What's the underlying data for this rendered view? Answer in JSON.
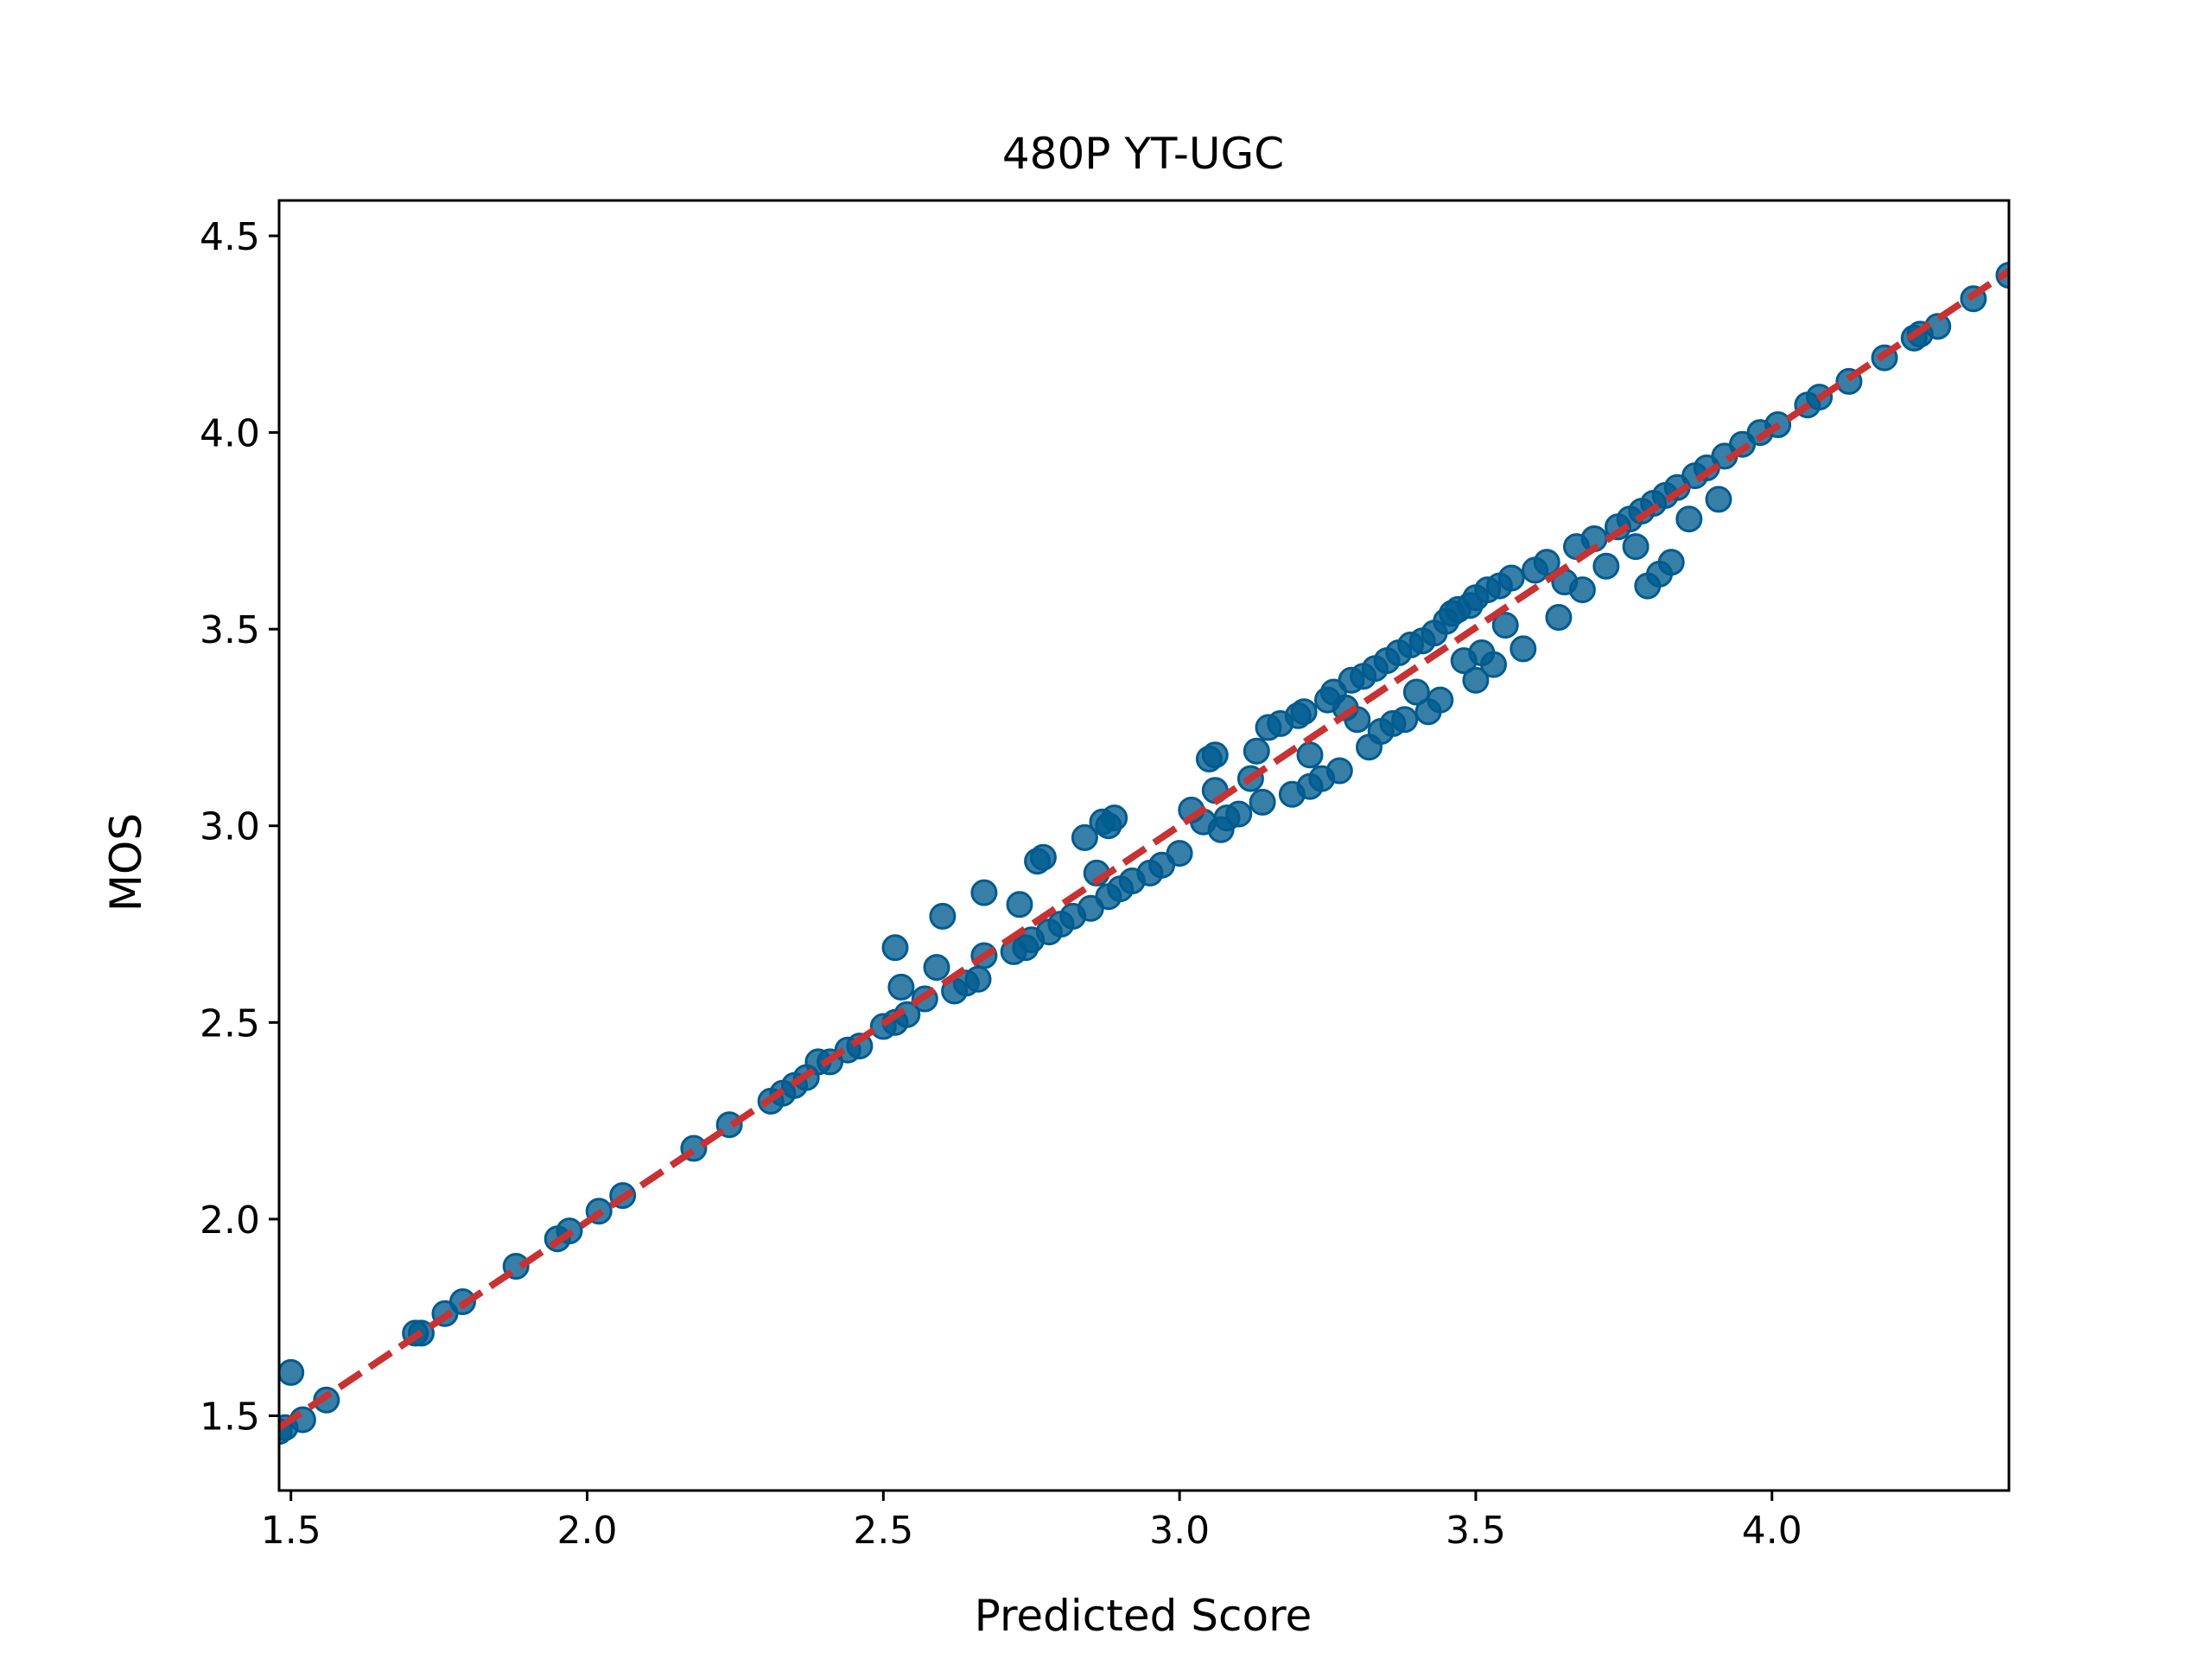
{
  "chart_data": {
    "type": "scatter",
    "title": "480P YT-UGC",
    "xlabel": "Predicted Score",
    "ylabel": "MOS",
    "xlim": [
      1.48,
      4.4
    ],
    "ylim": [
      1.31,
      4.59
    ],
    "xticks": [
      1.5,
      2.0,
      2.5,
      3.0,
      3.5,
      4.0
    ],
    "xtick_labels": [
      "1.5",
      "2.0",
      "2.5",
      "3.0",
      "3.5",
      "4.0"
    ],
    "yticks": [
      1.5,
      2.0,
      2.5,
      3.0,
      3.5,
      4.0,
      4.5
    ],
    "ytick_labels": [
      "1.5",
      "2.0",
      "2.5",
      "3.0",
      "3.5",
      "4.0",
      "4.5"
    ],
    "grid": false,
    "legend": "none",
    "colors": {
      "points": "#005b8f",
      "fit_line": "#c83232"
    },
    "fit_line": {
      "style": "dashed",
      "x": [
        1.48,
        4.4
      ],
      "y": [
        1.47,
        4.41
      ]
    },
    "points": [
      [
        1.48,
        1.46
      ],
      [
        1.49,
        1.47
      ],
      [
        1.5,
        1.61
      ],
      [
        1.52,
        1.49
      ],
      [
        1.56,
        1.54
      ],
      [
        1.71,
        1.71
      ],
      [
        1.72,
        1.71
      ],
      [
        1.76,
        1.76
      ],
      [
        1.79,
        1.79
      ],
      [
        1.88,
        1.88
      ],
      [
        1.95,
        1.95
      ],
      [
        1.97,
        1.97
      ],
      [
        2.02,
        2.02
      ],
      [
        2.06,
        2.06
      ],
      [
        2.18,
        2.18
      ],
      [
        2.24,
        2.24
      ],
      [
        2.31,
        2.3
      ],
      [
        2.33,
        2.32
      ],
      [
        2.35,
        2.34
      ],
      [
        2.37,
        2.36
      ],
      [
        2.39,
        2.4
      ],
      [
        2.41,
        2.4
      ],
      [
        2.44,
        2.43
      ],
      [
        2.46,
        2.44
      ],
      [
        2.5,
        2.49
      ],
      [
        2.52,
        2.5
      ],
      [
        2.54,
        2.52
      ],
      [
        2.52,
        2.69
      ],
      [
        2.53,
        2.59
      ],
      [
        2.57,
        2.56
      ],
      [
        2.59,
        2.64
      ],
      [
        2.6,
        2.77
      ],
      [
        2.62,
        2.58
      ],
      [
        2.64,
        2.6
      ],
      [
        2.66,
        2.61
      ],
      [
        2.67,
        2.67
      ],
      [
        2.67,
        2.83
      ],
      [
        2.72,
        2.68
      ],
      [
        2.73,
        2.8
      ],
      [
        2.74,
        2.69
      ],
      [
        2.75,
        2.71
      ],
      [
        2.76,
        2.91
      ],
      [
        2.77,
        2.92
      ],
      [
        2.78,
        2.73
      ],
      [
        2.8,
        2.75
      ],
      [
        2.82,
        2.77
      ],
      [
        2.84,
        2.97
      ],
      [
        2.85,
        2.79
      ],
      [
        2.86,
        2.88
      ],
      [
        2.87,
        3.01
      ],
      [
        2.88,
        3.0
      ],
      [
        2.89,
        3.02
      ],
      [
        2.88,
        2.82
      ],
      [
        2.9,
        2.84
      ],
      [
        2.92,
        2.86
      ],
      [
        2.95,
        2.88
      ],
      [
        2.97,
        2.9
      ],
      [
        3.0,
        2.93
      ],
      [
        3.02,
        3.04
      ],
      [
        3.04,
        3.01
      ],
      [
        3.05,
        3.17
      ],
      [
        3.06,
        3.18
      ],
      [
        3.06,
        3.09
      ],
      [
        3.07,
        2.99
      ],
      [
        3.08,
        3.02
      ],
      [
        3.1,
        3.03
      ],
      [
        3.12,
        3.12
      ],
      [
        3.13,
        3.19
      ],
      [
        3.14,
        3.06
      ],
      [
        3.15,
        3.25
      ],
      [
        3.17,
        3.26
      ],
      [
        3.19,
        3.08
      ],
      [
        3.2,
        3.28
      ],
      [
        3.21,
        3.29
      ],
      [
        3.22,
        3.1
      ],
      [
        3.22,
        3.18
      ],
      [
        3.24,
        3.12
      ],
      [
        3.25,
        3.32
      ],
      [
        3.26,
        3.34
      ],
      [
        3.27,
        3.14
      ],
      [
        3.28,
        3.3
      ],
      [
        3.29,
        3.37
      ],
      [
        3.3,
        3.27
      ],
      [
        3.31,
        3.38
      ],
      [
        3.32,
        3.2
      ],
      [
        3.33,
        3.4
      ],
      [
        3.34,
        3.24
      ],
      [
        3.35,
        3.42
      ],
      [
        3.36,
        3.26
      ],
      [
        3.37,
        3.44
      ],
      [
        3.38,
        3.27
      ],
      [
        3.39,
        3.46
      ],
      [
        3.4,
        3.34
      ],
      [
        3.41,
        3.47
      ],
      [
        3.42,
        3.29
      ],
      [
        3.43,
        3.49
      ],
      [
        3.44,
        3.32
      ],
      [
        3.45,
        3.52
      ],
      [
        3.46,
        3.54
      ],
      [
        3.47,
        3.55
      ],
      [
        3.48,
        3.42
      ],
      [
        3.49,
        3.56
      ],
      [
        3.5,
        3.37
      ],
      [
        3.5,
        3.58
      ],
      [
        3.51,
        3.44
      ],
      [
        3.52,
        3.6
      ],
      [
        3.53,
        3.41
      ],
      [
        3.54,
        3.61
      ],
      [
        3.55,
        3.51
      ],
      [
        3.56,
        3.63
      ],
      [
        3.58,
        3.45
      ],
      [
        3.6,
        3.65
      ],
      [
        3.62,
        3.67
      ],
      [
        3.64,
        3.53
      ],
      [
        3.65,
        3.62
      ],
      [
        3.67,
        3.71
      ],
      [
        3.68,
        3.6
      ],
      [
        3.7,
        3.73
      ],
      [
        3.72,
        3.66
      ],
      [
        3.74,
        3.76
      ],
      [
        3.76,
        3.78
      ],
      [
        3.77,
        3.71
      ],
      [
        3.78,
        3.8
      ],
      [
        3.79,
        3.61
      ],
      [
        3.8,
        3.82
      ],
      [
        3.81,
        3.64
      ],
      [
        3.82,
        3.84
      ],
      [
        3.83,
        3.67
      ],
      [
        3.84,
        3.86
      ],
      [
        3.86,
        3.78
      ],
      [
        3.87,
        3.89
      ],
      [
        3.89,
        3.91
      ],
      [
        3.91,
        3.83
      ],
      [
        3.92,
        3.94
      ],
      [
        3.95,
        3.97
      ],
      [
        3.98,
        4.0
      ],
      [
        4.01,
        4.02
      ],
      [
        4.06,
        4.07
      ],
      [
        4.08,
        4.09
      ],
      [
        4.13,
        4.13
      ],
      [
        4.19,
        4.19
      ],
      [
        4.24,
        4.24
      ],
      [
        4.25,
        4.25
      ],
      [
        4.28,
        4.27
      ],
      [
        4.34,
        4.34
      ],
      [
        4.4,
        4.4
      ]
    ]
  }
}
